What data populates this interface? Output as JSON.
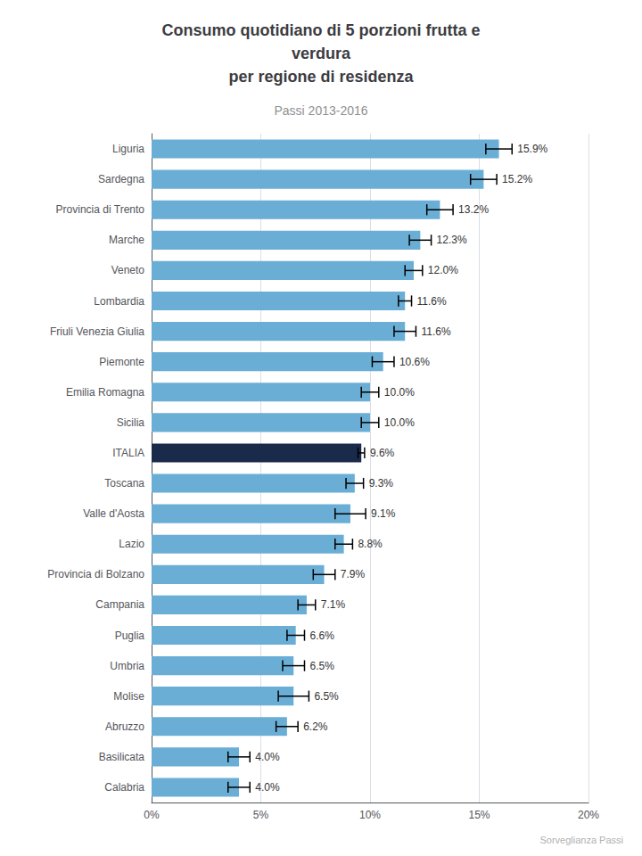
{
  "chart_data": {
    "type": "bar",
    "orientation": "horizontal",
    "title": "Consumo quotidiano di 5 porzioni frutta e\nverdura\nper regione di residenza",
    "subtitle": "Passi 2013-2016",
    "annotations": [
      "Sorveglianza Passi"
    ],
    "categories": [
      "Liguria",
      "Sardegna",
      "Provincia di Trento",
      "Marche",
      "Veneto",
      "Lombardia",
      "Friuli Venezia Giulia",
      "Piemonte",
      "Emilia Romagna",
      "Sicilia",
      "ITALIA",
      "Toscana",
      "Valle d'Aosta",
      "Lazio",
      "Provincia di Bolzano",
      "Campania",
      "Puglia",
      "Umbria",
      "Molise",
      "Abruzzo",
      "Basilicata",
      "Calabria"
    ],
    "values": [
      15.9,
      15.2,
      13.2,
      12.3,
      12.0,
      11.6,
      11.6,
      10.6,
      10.0,
      10.0,
      9.6,
      9.3,
      9.1,
      8.8,
      7.9,
      7.1,
      6.6,
      6.5,
      6.5,
      6.2,
      4.0,
      4.0
    ],
    "errors": [
      0.6,
      0.6,
      0.6,
      0.5,
      0.4,
      0.3,
      0.5,
      0.5,
      0.4,
      0.4,
      0.15,
      0.4,
      0.7,
      0.4,
      0.5,
      0.4,
      0.4,
      0.5,
      0.7,
      0.5,
      0.5,
      0.5
    ],
    "data_labels": true,
    "value_labels": [
      "15.9%",
      "15.2%",
      "13.2%",
      "12.3%",
      "12.0%",
      "11.6%",
      "11.6%",
      "10.6%",
      "10.0%",
      "10.0%",
      "9.6%",
      "9.3%",
      "9.1%",
      "8.8%",
      "7.9%",
      "7.1%",
      "6.6%",
      "6.5%",
      "6.5%",
      "6.2%",
      "4.0%",
      "4.0%"
    ],
    "colors": [
      "#6aaed6",
      "#6aaed6",
      "#6aaed6",
      "#6aaed6",
      "#6aaed6",
      "#6aaed6",
      "#6aaed6",
      "#6aaed6",
      "#6aaed6",
      "#6aaed6",
      "#1a2a4a",
      "#6aaed6",
      "#6aaed6",
      "#6aaed6",
      "#6aaed6",
      "#6aaed6",
      "#6aaed6",
      "#6aaed6",
      "#6aaed6",
      "#6aaed6",
      "#6aaed6",
      "#6aaed6"
    ],
    "xlim": [
      0,
      20
    ],
    "xticks": [
      {
        "value": 0,
        "label": "0%"
      },
      {
        "value": 5,
        "label": "5%"
      },
      {
        "value": 10,
        "label": "10%"
      },
      {
        "value": 15,
        "label": "15%"
      },
      {
        "value": 20,
        "label": "20%"
      }
    ],
    "grid": true
  }
}
